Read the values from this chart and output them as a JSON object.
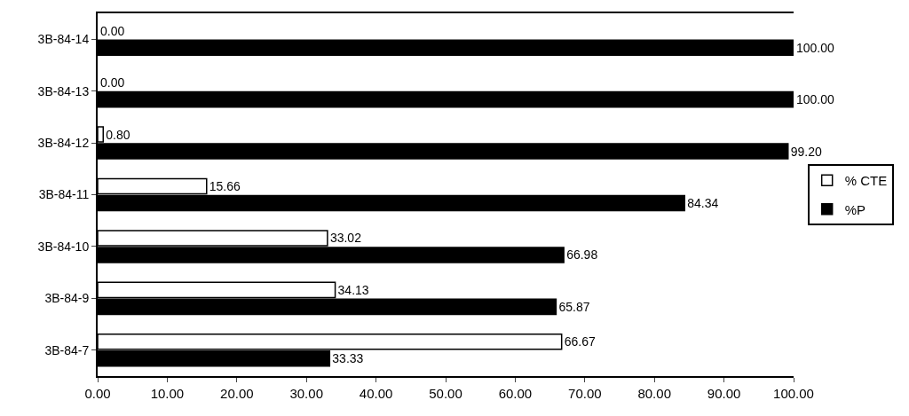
{
  "chart_data": {
    "type": "bar",
    "orientation": "horizontal",
    "categories": [
      "3B-84-14",
      "3B-84-13",
      "3B-84-12",
      "3B-84-11",
      "3B-84-10",
      "3B-84-9",
      "3B-84-7"
    ],
    "series": [
      {
        "name": "% CTE",
        "color": "#ffffff",
        "values": [
          0.0,
          0.0,
          0.8,
          15.66,
          33.02,
          34.13,
          66.67
        ],
        "value_labels": [
          "0.00",
          "0.00",
          "0.80",
          "15.66",
          "33.02",
          "34.13",
          "66.67"
        ]
      },
      {
        "name": "%P",
        "color": "#000000",
        "values": [
          100.0,
          100.0,
          99.2,
          84.34,
          66.98,
          65.87,
          33.33
        ],
        "value_labels": [
          "100.00",
          "100.00",
          "99.20",
          "84.34",
          "66.98",
          "65.87",
          "33.33"
        ]
      }
    ],
    "xlim": [
      0,
      100
    ],
    "xticks": [
      {
        "value": 0,
        "label": "0.00"
      },
      {
        "value": 10,
        "label": "10.00"
      },
      {
        "value": 20,
        "label": "20.00"
      },
      {
        "value": 30,
        "label": "30.00"
      },
      {
        "value": 40,
        "label": "40.00"
      },
      {
        "value": 50,
        "label": "50.00"
      },
      {
        "value": 60,
        "label": "60.00"
      },
      {
        "value": 70,
        "label": "70.00"
      },
      {
        "value": 80,
        "label": "80.00"
      },
      {
        "value": 90,
        "label": "90.00"
      },
      {
        "value": 100,
        "label": "100.00"
      }
    ],
    "legend": "right"
  }
}
